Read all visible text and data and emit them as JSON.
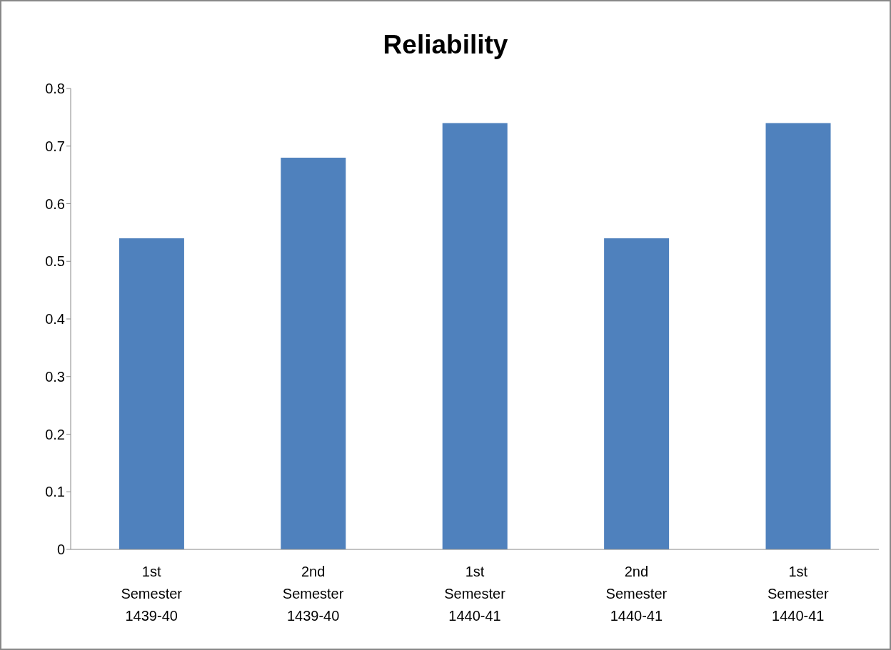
{
  "chart_data": {
    "type": "bar",
    "title": "Reliability",
    "categories": [
      "1st Semester 1439-40",
      "2nd Semester 1439-40",
      "1st Semester 1440-41",
      "2nd Semester 1440-41",
      "1st Semester 1440-41"
    ],
    "values": [
      0.54,
      0.68,
      0.74,
      0.54,
      0.74
    ],
    "color": "#4f81bd",
    "ylim": [
      0,
      0.8
    ],
    "yticks": [
      0,
      0.1,
      0.2,
      0.3,
      0.4,
      0.5,
      0.6,
      0.7,
      0.8
    ]
  }
}
